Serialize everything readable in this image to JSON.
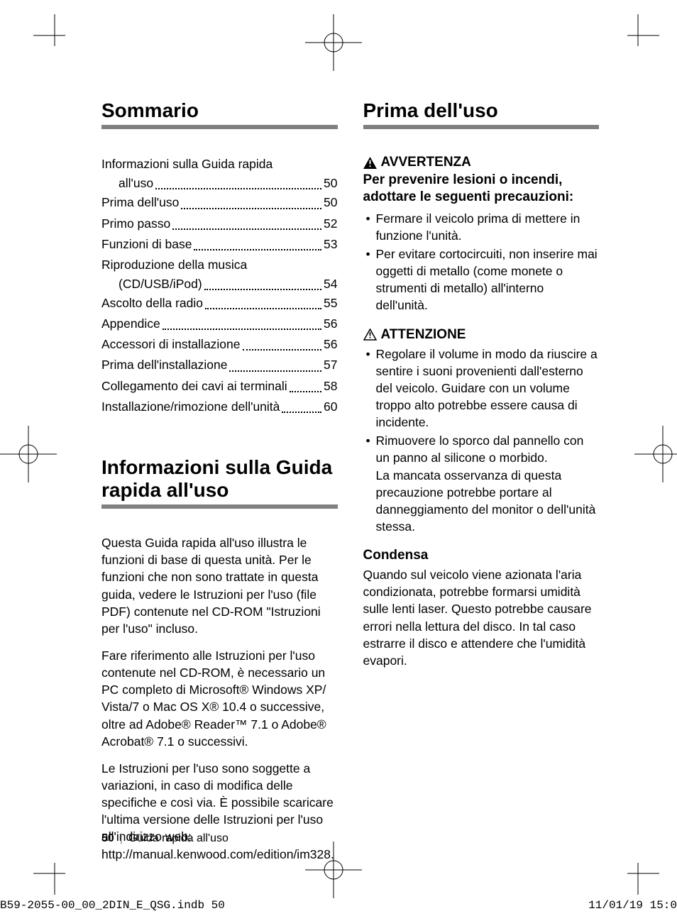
{
  "left_column": {
    "section1_title": "Sommario",
    "toc": [
      {
        "type": "wrap",
        "line1": "Informazioni sulla Guida rapida",
        "line2": "all'uso",
        "page": "50"
      },
      {
        "type": "single",
        "label": "Prima dell'uso",
        "page": "50"
      },
      {
        "type": "single",
        "label": "Primo passo",
        "page": "52"
      },
      {
        "type": "single",
        "label": "Funzioni di base",
        "page": "53"
      },
      {
        "type": "wrap",
        "line1": "Riproduzione della musica",
        "line2": "(CD/USB/iPod)",
        "page": "54"
      },
      {
        "type": "single",
        "label": "Ascolto della radio",
        "page": "55"
      },
      {
        "type": "single",
        "label": "Appendice ",
        "page": "56"
      },
      {
        "type": "single",
        "label": "Accessori di installazione",
        "page": "56"
      },
      {
        "type": "single",
        "label": "Prima dell'installazione",
        "page": "57"
      },
      {
        "type": "single",
        "label": "Collegamento dei cavi ai terminali",
        "page": "58"
      },
      {
        "type": "single",
        "label": "Installazione/rimozione dell'unità",
        "page": "60"
      }
    ],
    "section2_title": "Informazioni sulla Guida rapida all'uso",
    "para1": "Questa Guida rapida all'uso illustra le funzioni di base di questa unità. Per le funzioni che non sono trattate in questa guida, vedere le Istruzioni per l'uso (file PDF) contenute nel CD-ROM \"Istruzioni per l'uso\" incluso.",
    "para2": "Fare riferimento alle Istruzioni per l'uso contenute nel CD-ROM, è necessario un PC completo di Microsoft® Windows XP/ Vista/7 o Mac OS X® 10.4 o successive, oltre ad Adobe® Reader™ 7.1 o Adobe® Acrobat® 7.1 o successivi.",
    "para3": "Le Istruzioni per l'uso sono soggette a variazioni, in caso di modifica delle specifiche e così via. È possibile scaricare l'ultima versione delle Istruzioni per l'uso all'indirizzo web: http://manual.kenwood.com/edition/im328."
  },
  "right_column": {
    "section1_title": "Prima dell'uso",
    "warning_label": "AVVERTENZA",
    "warning_sub": "Per prevenire lesioni o incendi, adottare le seguenti precauzioni:",
    "warning_bullets": [
      "Fermare il veicolo prima di mettere in funzione l'unità.",
      "Per evitare cortocircuiti, non inserire mai oggetti di metallo (come monete o strumenti di metallo) all'interno dell'unità."
    ],
    "caution_label": "ATTENZIONE",
    "caution_bullets": [
      "Regolare il volume in modo da riuscire a sentire i suoni provenienti dall'esterno del veicolo. Guidare con un volume troppo alto potrebbe essere causa di incidente.",
      "Rimuovere lo sporco dal pannello con un panno al silicone o morbido.\nLa mancata osservanza di questa precauzione potrebbe portare al danneggiamento del monitor o dell'unità stessa."
    ],
    "condensa_head": "Condensa",
    "condensa_body": "Quando sul veicolo viene azionata l'aria condizionata, potrebbe formarsi umidità sulle lenti laser. Questo potrebbe causare errori nella lettura del disco. In tal caso estrarre il disco e attendere che l'umidità evapori."
  },
  "footer": {
    "page_num": "50",
    "divider": "|",
    "label": "Guida rapida all'uso"
  },
  "print_info": {
    "left": "B59-2055-00_00_2DIN_E_QSG.indb   50",
    "right": "11/01/19   15:0"
  },
  "style": {
    "heading_color": "#000000",
    "underline_color": "#808080",
    "text_color": "#000000",
    "bg_color": "#ffffff",
    "title_fontsize": 28,
    "body_fontsize": 17.5
  }
}
